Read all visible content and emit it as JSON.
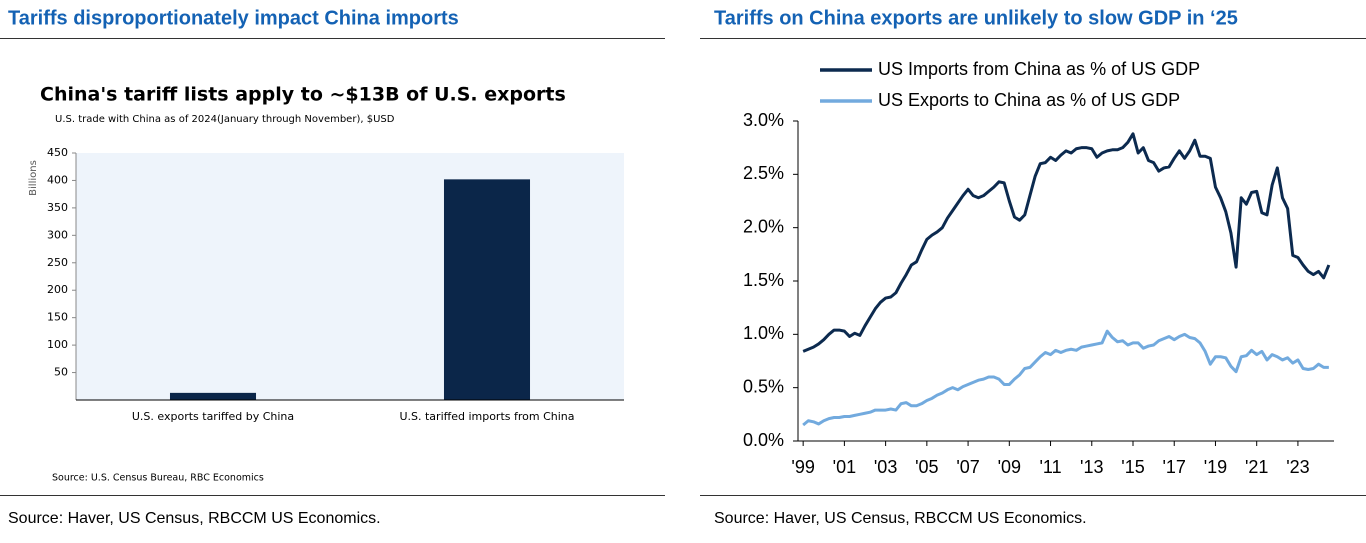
{
  "chart_data": [
    {
      "type": "bar",
      "heading": "Tariffs disproportionately impact China imports",
      "title": "China's tariff lists apply to ~$13B of U.S. exports",
      "subtitle": "U.S. trade with China as of 2024(January through November), $USD",
      "ylabel": "Billions",
      "categories": [
        "U.S. exports tariffed by China",
        "U.S. tariffed imports from China"
      ],
      "values": [
        13,
        402
      ],
      "color": "#0b2649",
      "ylim": [
        0,
        450
      ],
      "yticks": [
        50,
        100,
        150,
        200,
        250,
        300,
        350,
        400,
        450
      ],
      "grid": false,
      "note": "Source: U.S. Census Bureau, RBC Economics",
      "source": "Source: Haver, US Census, RBCCM US Economics."
    },
    {
      "type": "line",
      "heading": "Tariffs on China exports are unlikely to slow GDP in ‘25",
      "x": [
        1999,
        1999.25,
        1999.5,
        1999.75,
        2000,
        2000.25,
        2000.5,
        2000.75,
        2001,
        2001.25,
        2001.5,
        2001.75,
        2002,
        2002.25,
        2002.5,
        2002.75,
        2003,
        2003.25,
        2003.5,
        2003.75,
        2004,
        2004.25,
        2004.5,
        2004.75,
        2005,
        2005.25,
        2005.5,
        2005.75,
        2006,
        2006.25,
        2006.5,
        2006.75,
        2007,
        2007.25,
        2007.5,
        2007.75,
        2008,
        2008.25,
        2008.5,
        2008.75,
        2009,
        2009.25,
        2009.5,
        2009.75,
        2010,
        2010.25,
        2010.5,
        2010.75,
        2011,
        2011.25,
        2011.5,
        2011.75,
        2012,
        2012.25,
        2012.5,
        2012.75,
        2013,
        2013.25,
        2013.5,
        2013.75,
        2014,
        2014.25,
        2014.5,
        2014.75,
        2015,
        2015.25,
        2015.5,
        2015.75,
        2016,
        2016.25,
        2016.5,
        2016.75,
        2017,
        2017.25,
        2017.5,
        2017.75,
        2018,
        2018.25,
        2018.5,
        2018.75,
        2019,
        2019.25,
        2019.5,
        2019.75,
        2020,
        2020.25,
        2020.5,
        2020.75,
        2021,
        2021.25,
        2021.5,
        2021.75,
        2022,
        2022.25,
        2022.5,
        2022.75,
        2023,
        2023.25,
        2023.5,
        2023.75,
        2024,
        2024.25,
        2024.5
      ],
      "series": [
        {
          "name": "US Imports from China as % of US GDP",
          "color": "#0c2a4f",
          "values": [
            0.84,
            0.86,
            0.88,
            0.91,
            0.95,
            1.0,
            1.04,
            1.04,
            1.03,
            0.98,
            1.01,
            0.99,
            1.08,
            1.16,
            1.24,
            1.3,
            1.34,
            1.35,
            1.39,
            1.48,
            1.56,
            1.65,
            1.68,
            1.79,
            1.89,
            1.93,
            1.96,
            2.0,
            2.09,
            2.16,
            2.23,
            2.3,
            2.36,
            2.3,
            2.28,
            2.3,
            2.34,
            2.38,
            2.43,
            2.42,
            2.25,
            2.1,
            2.07,
            2.12,
            2.3,
            2.48,
            2.6,
            2.61,
            2.66,
            2.63,
            2.68,
            2.72,
            2.7,
            2.74,
            2.75,
            2.75,
            2.74,
            2.66,
            2.7,
            2.72,
            2.73,
            2.73,
            2.75,
            2.8,
            2.88,
            2.7,
            2.75,
            2.63,
            2.61,
            2.53,
            2.56,
            2.57,
            2.65,
            2.72,
            2.65,
            2.72,
            2.82,
            2.67,
            2.67,
            2.65,
            2.38,
            2.28,
            2.15,
            1.95,
            1.63,
            2.28,
            2.22,
            2.33,
            2.34,
            2.14,
            2.12,
            2.4,
            2.56,
            2.28,
            2.18,
            1.74,
            1.72,
            1.65,
            1.59,
            1.56,
            1.59,
            1.53,
            1.65
          ]
        },
        {
          "name": "US Exports to China as % of US GDP",
          "color": "#72aade",
          "values": [
            0.15,
            0.19,
            0.18,
            0.16,
            0.19,
            0.21,
            0.22,
            0.22,
            0.23,
            0.23,
            0.24,
            0.25,
            0.26,
            0.27,
            0.29,
            0.29,
            0.29,
            0.3,
            0.29,
            0.35,
            0.36,
            0.33,
            0.33,
            0.35,
            0.38,
            0.4,
            0.43,
            0.45,
            0.48,
            0.5,
            0.48,
            0.51,
            0.53,
            0.55,
            0.57,
            0.58,
            0.6,
            0.6,
            0.58,
            0.53,
            0.53,
            0.58,
            0.62,
            0.68,
            0.69,
            0.74,
            0.79,
            0.83,
            0.81,
            0.85,
            0.83,
            0.85,
            0.86,
            0.85,
            0.88,
            0.89,
            0.9,
            0.91,
            0.92,
            1.03,
            0.97,
            0.93,
            0.94,
            0.9,
            0.92,
            0.92,
            0.87,
            0.89,
            0.9,
            0.94,
            0.96,
            0.98,
            0.95,
            0.98,
            1.0,
            0.97,
            0.96,
            0.92,
            0.84,
            0.72,
            0.79,
            0.79,
            0.78,
            0.7,
            0.65,
            0.79,
            0.8,
            0.85,
            0.81,
            0.84,
            0.76,
            0.81,
            0.79,
            0.76,
            0.78,
            0.73,
            0.76,
            0.68,
            0.67,
            0.68,
            0.72,
            0.69,
            0.69
          ]
        }
      ],
      "xlim": [
        1998.75,
        2024.75
      ],
      "xticks": [
        {
          "value": 1999,
          "label": "'99"
        },
        {
          "value": 2001,
          "label": "'01"
        },
        {
          "value": 2003,
          "label": "'03"
        },
        {
          "value": 2005,
          "label": "'05"
        },
        {
          "value": 2007,
          "label": "'07"
        },
        {
          "value": 2009,
          "label": "'09"
        },
        {
          "value": 2011,
          "label": "'11"
        },
        {
          "value": 2013,
          "label": "'13"
        },
        {
          "value": 2015,
          "label": "'15"
        },
        {
          "value": 2017,
          "label": "'17"
        },
        {
          "value": 2019,
          "label": "'19"
        },
        {
          "value": 2021,
          "label": "'21"
        },
        {
          "value": 2023,
          "label": "'23"
        }
      ],
      "ylim": [
        0,
        3
      ],
      "yticks": [
        {
          "value": 0,
          "label": "0.0%"
        },
        {
          "value": 0.5,
          "label": "0.5%"
        },
        {
          "value": 1,
          "label": "1.0%"
        },
        {
          "value": 1.5,
          "label": "1.5%"
        },
        {
          "value": 2,
          "label": "2.0%"
        },
        {
          "value": 2.5,
          "label": "2.5%"
        },
        {
          "value": 3,
          "label": "3.0%"
        }
      ],
      "grid": false,
      "legend": "top",
      "source": "Source: Haver, US Census, RBCCM US Economics."
    }
  ]
}
